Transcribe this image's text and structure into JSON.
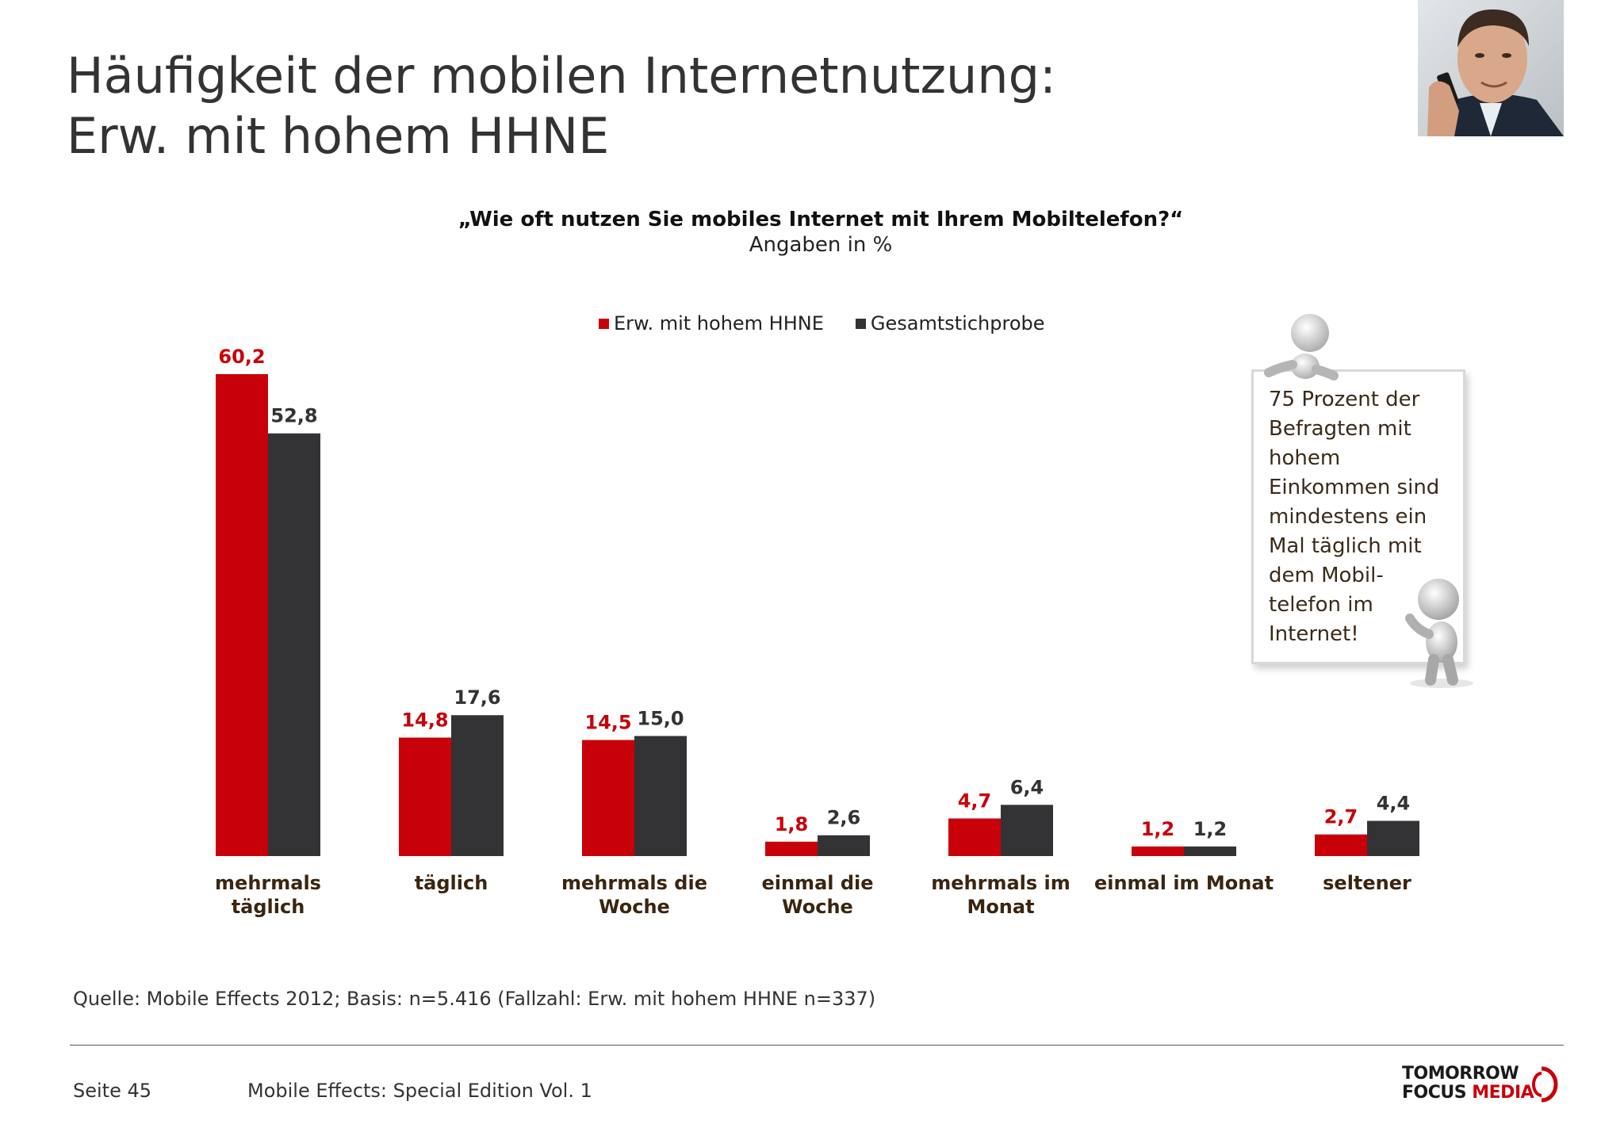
{
  "title": {
    "line1": "Häufigkeit der mobilen Internetnutzung:",
    "line2": "Erw. mit hohem HHNE"
  },
  "question": "„Wie oft nutzen Sie mobiles Internet mit Ihrem Mobiltelefon?“",
  "unit_label": "Angaben in %",
  "colors": {
    "series1": "#c8000a",
    "series2": "#333336",
    "category_label": "#3a2510"
  },
  "chart_data": {
    "type": "bar",
    "categories": [
      [
        "mehrmals",
        "täglich"
      ],
      [
        "täglich"
      ],
      [
        "mehrmals die",
        "Woche"
      ],
      [
        "einmal die",
        "Woche"
      ],
      [
        "mehrmals im",
        "Monat"
      ],
      [
        "einmal im Monat"
      ],
      [
        "seltener"
      ]
    ],
    "series": [
      {
        "name": "Erw. mit hohem HHNE",
        "values": [
          60.2,
          14.8,
          14.5,
          1.8,
          4.7,
          1.2,
          2.7
        ],
        "labels": [
          "60,2",
          "14,8",
          "14,5",
          "1,8",
          "4,7",
          "1,2",
          "2,7"
        ]
      },
      {
        "name": "Gesamtstichprobe",
        "values": [
          52.8,
          17.6,
          15.0,
          2.6,
          6.4,
          1.2,
          4.4
        ],
        "labels": [
          "52,8",
          "17,6",
          "15,0",
          "2,6",
          "6,4",
          "1,2",
          "4,4"
        ]
      }
    ],
    "ylim": [
      0,
      60.2
    ],
    "legend_position": "top",
    "grid": false
  },
  "note": {
    "lines": [
      "75 Prozent der",
      "Befragten mit",
      "hohem",
      "Einkommen sind",
      "mindestens ein",
      "Mal täglich mit",
      "dem Mobil-",
      "telefon im",
      "Internet!"
    ]
  },
  "source": "Quelle: Mobile Effects 2012; Basis: n=5.416 (Fallzahl: Erw. mit hohem HHNE n=337)",
  "footer": {
    "page": "Seite 45",
    "edition": "Mobile Effects: Special Edition Vol. 1",
    "logo_line1": "TOMORROW",
    "logo_line2a": "FOCUS",
    "logo_line2b": "MEDIA"
  }
}
